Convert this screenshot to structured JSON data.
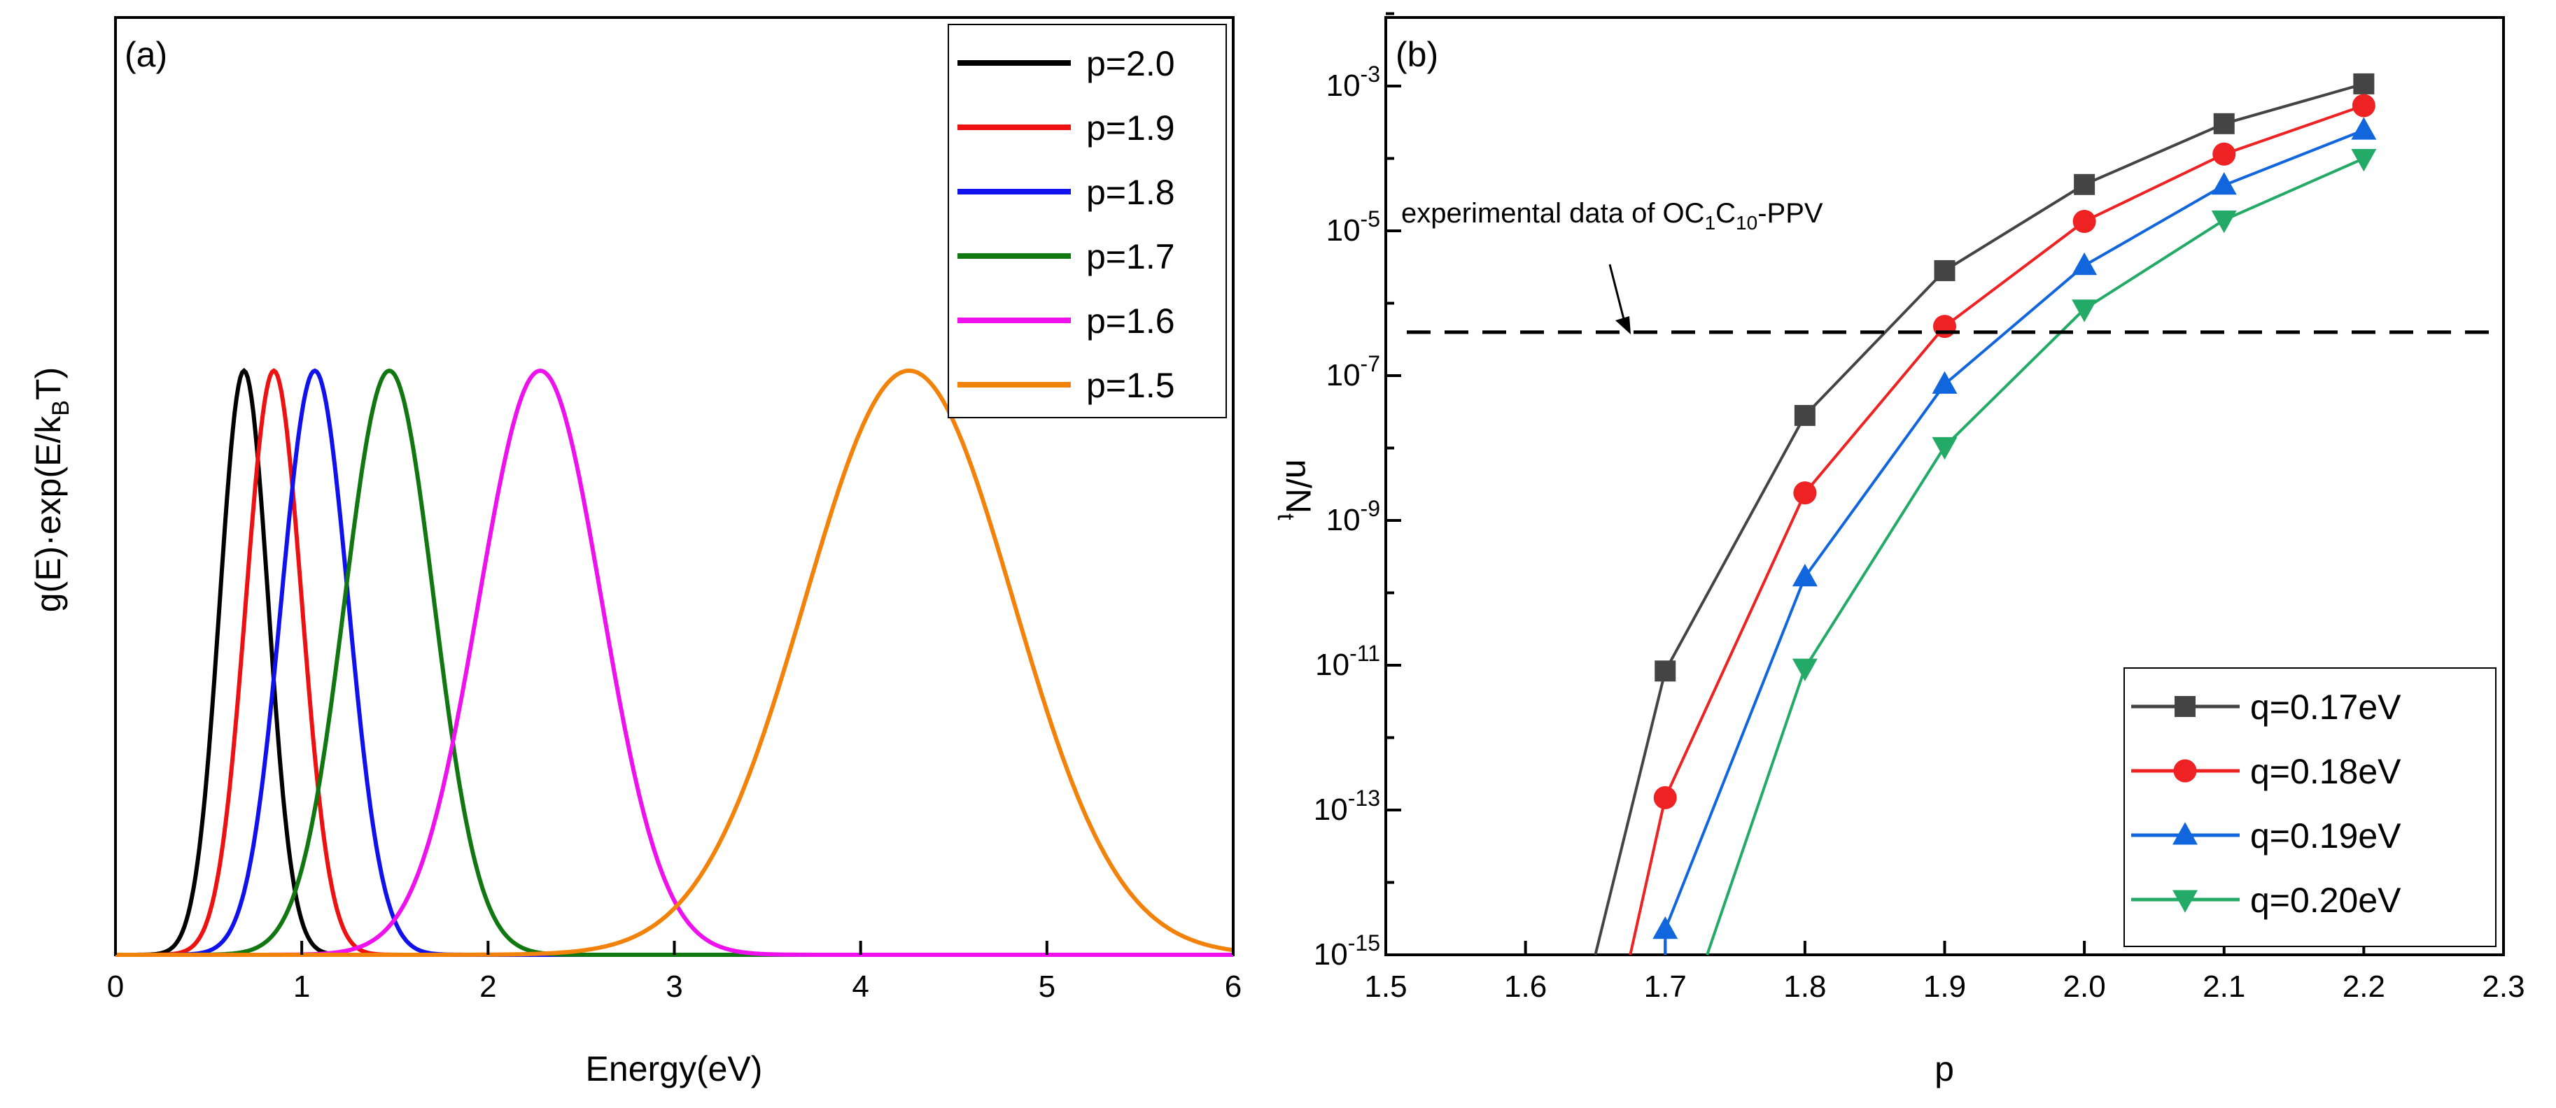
{
  "chart_data": [
    {
      "panel": "(a)",
      "type": "line",
      "xlabel": "Energy(eV)",
      "ylabel": "g(E)·exp(E/k_BT)",
      "ylabel_parts": {
        "pre": "g(E)·exp(E/k",
        "sub": "B",
        "post": "T)"
      },
      "xlim": [
        0,
        6
      ],
      "xticks": [
        "0",
        "1",
        "2",
        "3",
        "4",
        "5",
        "6"
      ],
      "y_ticks_shown": false,
      "legend_position": "top-right",
      "series": [
        {
          "name": "p=2.0",
          "color": "#000000",
          "peak_energy": 0.69,
          "width": 0.13
        },
        {
          "name": "p=1.9",
          "color": "#ee1111",
          "peak_energy": 0.85,
          "width": 0.15
        },
        {
          "name": "p=1.8",
          "color": "#1111ee",
          "peak_energy": 1.07,
          "width": 0.18
        },
        {
          "name": "p=1.7",
          "color": "#117711",
          "peak_energy": 1.47,
          "width": 0.24
        },
        {
          "name": "p=1.6",
          "color": "#ee11ee",
          "peak_energy": 2.28,
          "width": 0.33
        },
        {
          "name": "p=1.5",
          "color": "#f2820a",
          "peak_energy": 4.26,
          "width": 0.56
        }
      ]
    },
    {
      "panel": "(b)",
      "type": "line",
      "xlabel": "p",
      "ylabel": "n/N_t",
      "ylabel_parts": {
        "pre": "n/N",
        "sub": "t"
      },
      "yscale": "log",
      "xlim": [
        1.5,
        2.3
      ],
      "ylim_exp": [
        -15,
        -2
      ],
      "xticks": [
        "1.5",
        "1.6",
        "1.7",
        "1.8",
        "1.9",
        "2.0",
        "2.1",
        "2.2",
        "2.3"
      ],
      "yticks_exp": [
        "-15",
        "-13",
        "-11",
        "-9",
        "-7",
        "-5",
        "-3"
      ],
      "ytick_base": "10",
      "legend_position": "bottom-right",
      "annotation": {
        "pre": "experimental data of OC",
        "sub1": "1",
        "mid": "C",
        "sub2": "10",
        "post": "-PPV",
        "value_exp": -6.4
      },
      "series": [
        {
          "name": "q=0.17eV",
          "color": "#444444",
          "marker": "square",
          "x": [
            1.7,
            1.8,
            1.9,
            2.0,
            2.1,
            2.2
          ],
          "log10_y": [
            -11.08,
            -7.55,
            -5.55,
            -4.36,
            -3.52,
            -2.97
          ],
          "curve_start": [
            1.65,
            -15
          ]
        },
        {
          "name": "q=0.18eV",
          "color": "#ee2222",
          "marker": "circle",
          "x": [
            1.7,
            1.8,
            1.9,
            2.0,
            2.1,
            2.2
          ],
          "log10_y": [
            -12.83,
            -8.62,
            -6.32,
            -4.87,
            -3.94,
            -3.27
          ],
          "curve_start": [
            1.675,
            -15
          ]
        },
        {
          "name": "q=0.19eV",
          "color": "#1166dd",
          "marker": "triangle-up",
          "x": [
            1.7,
            1.8,
            1.9,
            2.0,
            2.1,
            2.2
          ],
          "log10_y": [
            -14.65,
            -9.78,
            -7.12,
            -5.48,
            -4.37,
            -3.61
          ],
          "curve_start": [
            1.7,
            -15
          ]
        },
        {
          "name": "q=0.20eV",
          "color": "#22aa66",
          "marker": "triangle-down",
          "x": [
            1.8,
            1.9,
            2.0,
            2.1,
            2.2
          ],
          "log10_y": [
            -11.04,
            -7.98,
            -6.08,
            -4.85,
            -4.0
          ],
          "curve_start": [
            1.73,
            -15
          ]
        }
      ]
    }
  ]
}
